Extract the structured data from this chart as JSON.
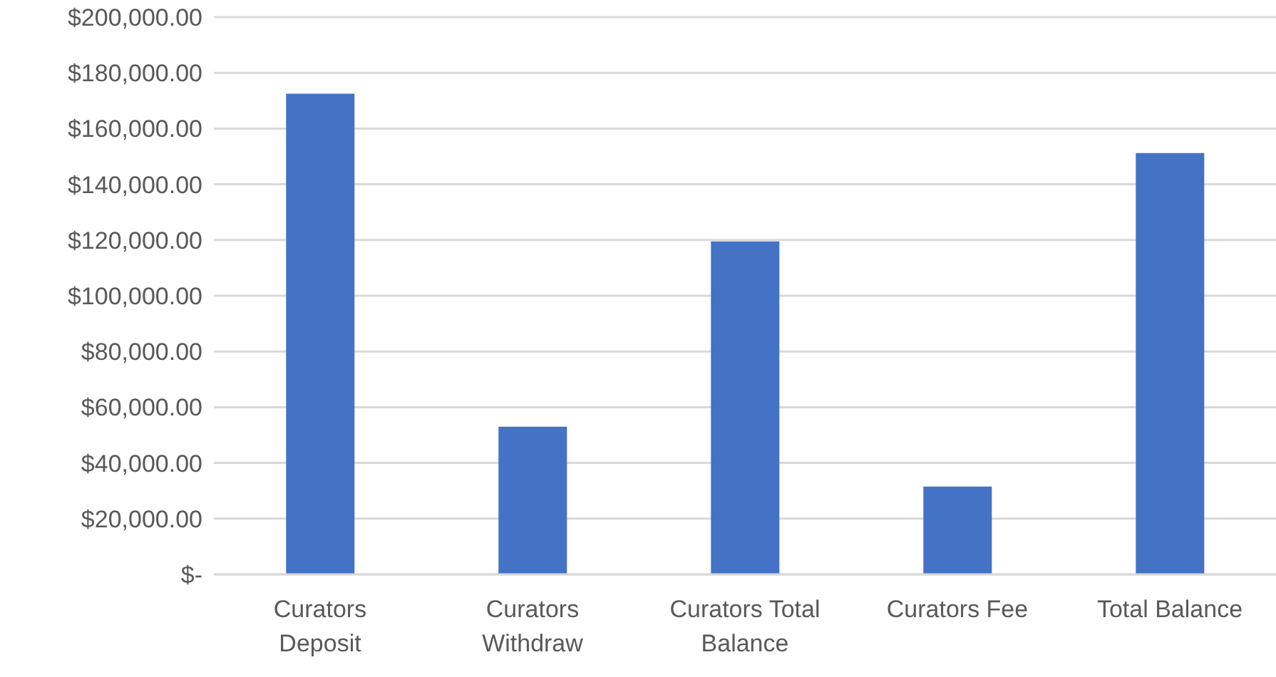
{
  "chart_data": {
    "type": "bar",
    "categories": [
      "Curators Deposit",
      "Curators Withdraw",
      "Curators Total Balance",
      "Curators Fee",
      "Total Balance"
    ],
    "values": [
      172500,
      53000,
      119500,
      31500,
      151200
    ],
    "color": "#4472c4",
    "ylim": [
      0,
      200000
    ],
    "yticks": [
      {
        "value": 0,
        "label": "$-"
      },
      {
        "value": 20000,
        "label": "$20,000.00"
      },
      {
        "value": 40000,
        "label": "$40,000.00"
      },
      {
        "value": 60000,
        "label": "$60,000.00"
      },
      {
        "value": 80000,
        "label": "$80,000.00"
      },
      {
        "value": 100000,
        "label": "$100,000.00"
      },
      {
        "value": 120000,
        "label": "$120,000.00"
      },
      {
        "value": 140000,
        "label": "$140,000.00"
      },
      {
        "value": 160000,
        "label": "$160,000.00"
      },
      {
        "value": 180000,
        "label": "$180,000.00"
      },
      {
        "value": 200000,
        "label": "$200,000.00"
      }
    ],
    "grid": "y"
  }
}
